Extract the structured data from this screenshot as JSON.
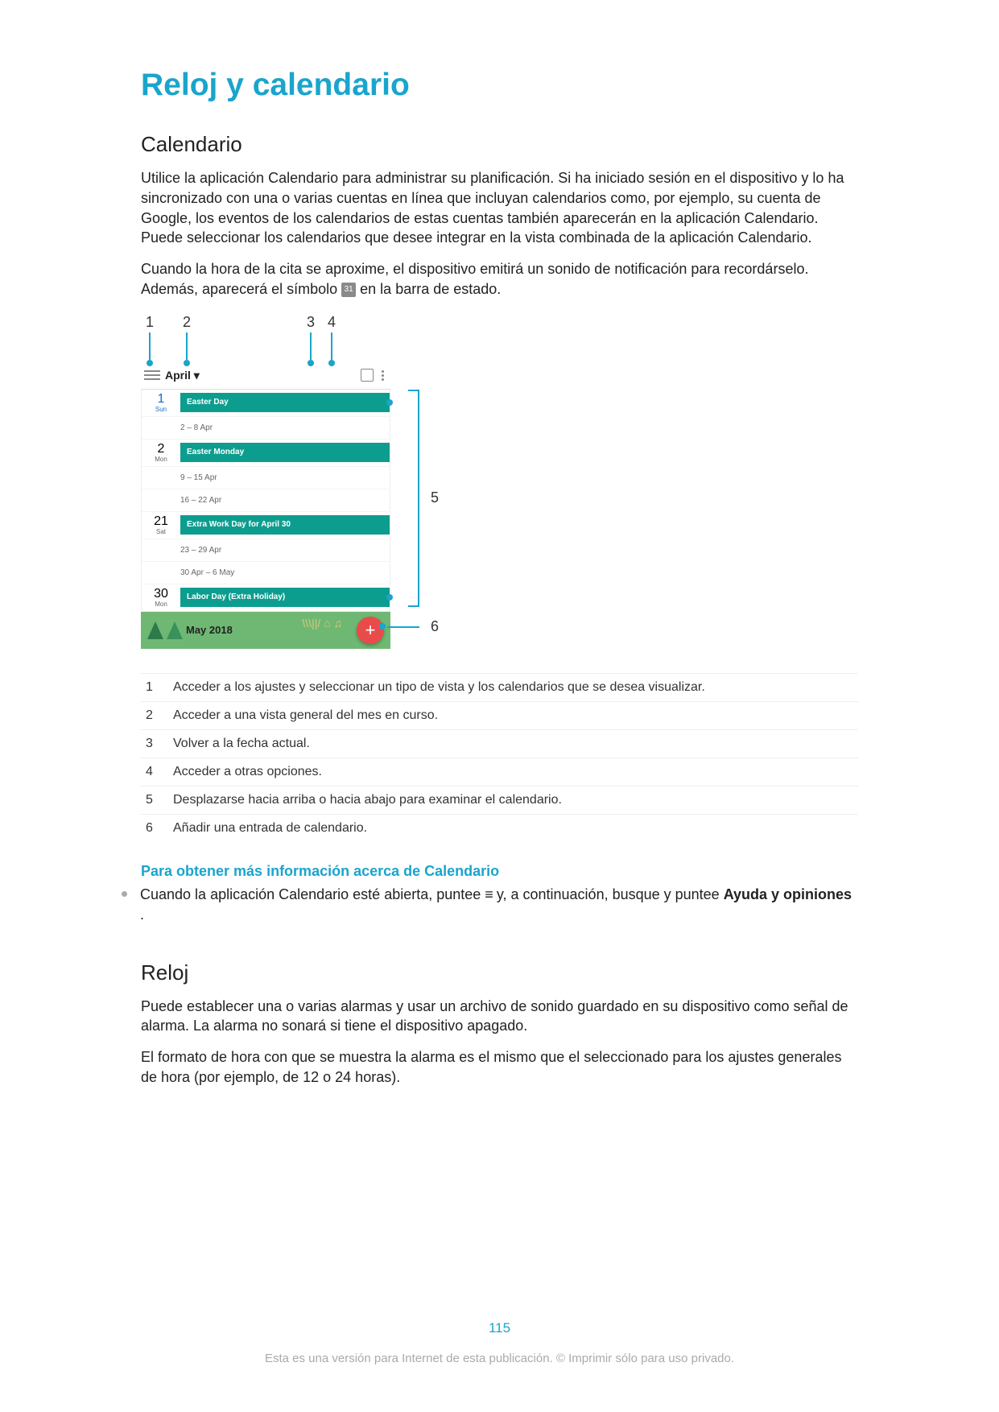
{
  "title": "Reloj y calendario",
  "section1": {
    "heading": "Calendario",
    "para1": "Utilice la aplicación Calendario para administrar su planificación. Si ha iniciado sesión en el dispositivo y lo ha sincronizado con una o varias cuentas en línea que incluyan calendarios como, por ejemplo, su cuenta de Google, los eventos de los calendarios de estas cuentas también aparecerán en la aplicación Calendario. Puede seleccionar los calendarios que desee integrar en la vista combinada de la aplicación Calendario.",
    "para2a": "Cuando la hora de la cita se aproxime, el dispositivo emitirá un sonido de notificación para recordárselo. Además, aparecerá el símbolo ",
    "para2b": " en la barra de estado.",
    "statusIconText": "31"
  },
  "callouts": {
    "c1": "1",
    "c2": "2",
    "c3": "3",
    "c4": "4",
    "c5": "5",
    "c6": "6"
  },
  "calendar": {
    "month": "April ▾",
    "footerMonth": "May 2018",
    "days": [
      {
        "num": "1",
        "day": "Sun",
        "sun": true,
        "event": "Easter Day"
      },
      {
        "range": "2 – 8 Apr"
      },
      {
        "num": "2",
        "day": "Mon",
        "event": "Easter Monday"
      },
      {
        "range": "9 – 15 Apr"
      },
      {
        "range": "16 – 22 Apr"
      },
      {
        "num": "21",
        "day": "Sat",
        "event": "Extra Work Day for April 30"
      },
      {
        "range": "23 – 29 Apr"
      },
      {
        "range": "30 Apr – 6 May"
      },
      {
        "num": "30",
        "day": "Mon",
        "event": "Labor Day (Extra Holiday)"
      }
    ],
    "fab": "+",
    "colors": {
      "accent": "#19a5cc",
      "eventBg": "#0d9d8f",
      "footerBg": "#6fb873",
      "fabBg": "#e94b4b"
    }
  },
  "legend": [
    {
      "n": "1",
      "text": "Acceder a los ajustes y seleccionar un tipo de vista y los calendarios que se desea visualizar."
    },
    {
      "n": "2",
      "text": "Acceder a una vista general del mes en curso."
    },
    {
      "n": "3",
      "text": "Volver a la fecha actual."
    },
    {
      "n": "4",
      "text": "Acceder a otras opciones."
    },
    {
      "n": "5",
      "text": "Desplazarse hacia arriba o hacia abajo para examinar el calendario."
    },
    {
      "n": "6",
      "text": "Añadir una entrada de calendario."
    }
  ],
  "moreinfo": {
    "heading": "Para obtener más información acerca de Calendario",
    "text1": "Cuando la aplicación Calendario esté abierta, puntee ",
    "hamburger": "≡",
    "text2": " y, a continuación, busque y puntee ",
    "bold": "Ayuda y opiniones",
    "text3": "."
  },
  "section2": {
    "heading": "Reloj",
    "para1": "Puede establecer una o varias alarmas y usar un archivo de sonido guardado en su dispositivo como señal de alarma. La alarma no sonará si tiene el dispositivo apagado.",
    "para2": "El formato de hora con que se muestra la alarma es el mismo que el seleccionado para los ajustes generales de hora (por ejemplo, de 12 o 24 horas)."
  },
  "pageNumber": "115",
  "footerNote": "Esta es una versión para Internet de esta publicación. © Imprimir sólo para uso privado."
}
